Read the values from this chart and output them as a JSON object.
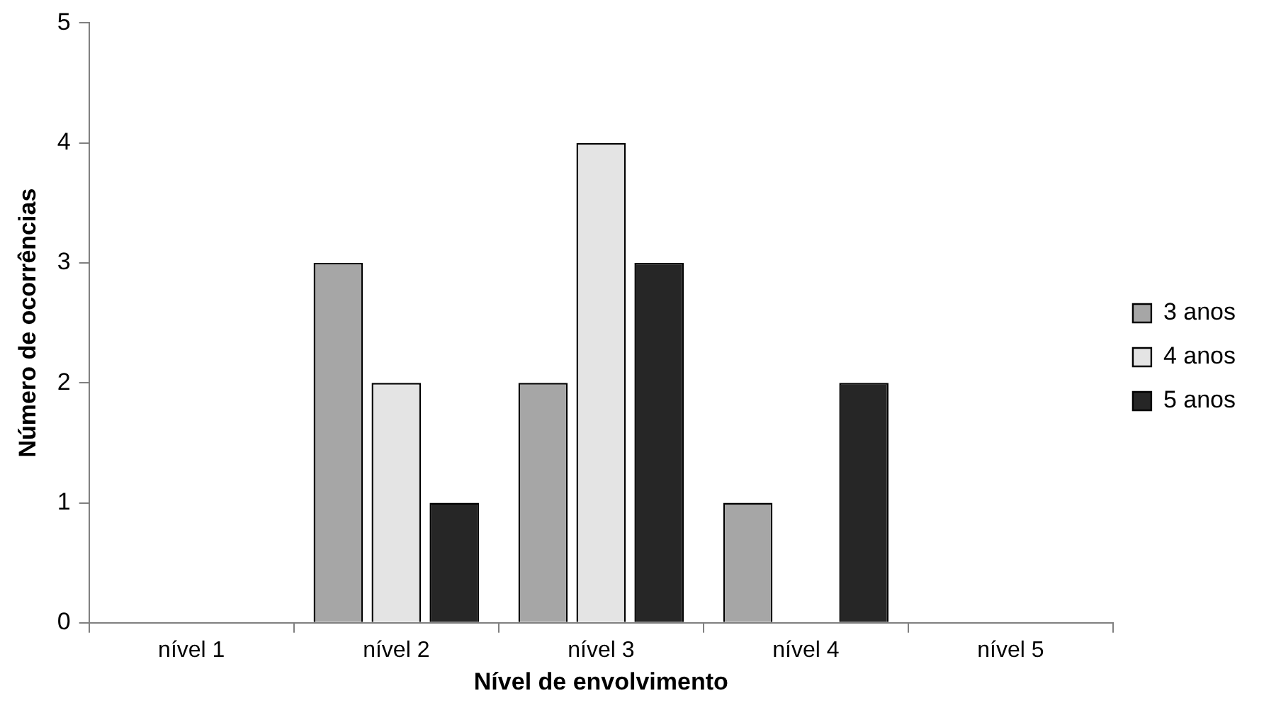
{
  "chart_data": {
    "type": "bar",
    "xlabel": "Nível de envolvimento",
    "ylabel": "Número de ocorrências",
    "categories": [
      "nível 1",
      "nível 2",
      "nível 3",
      "nível 4",
      "nível 5"
    ],
    "series": [
      {
        "name": "3 anos",
        "color": "#a6a6a6",
        "values": [
          0,
          3,
          2,
          1,
          0
        ]
      },
      {
        "name": "4 anos",
        "color": "#e4e4e4",
        "values": [
          0,
          2,
          4,
          0,
          0
        ]
      },
      {
        "name": "5 anos",
        "color": "#262626",
        "values": [
          0,
          1,
          3,
          2,
          0
        ]
      }
    ],
    "ylim": [
      0,
      5
    ],
    "yticks": [
      0,
      1,
      2,
      3,
      4,
      5
    ],
    "grid": false,
    "legend": "right"
  }
}
